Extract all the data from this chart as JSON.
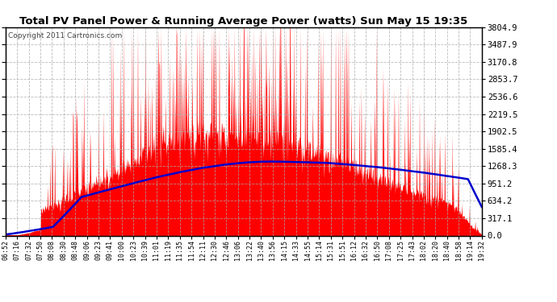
{
  "title": "Total PV Panel Power & Running Average Power (watts) Sun May 15 19:35",
  "copyright": "Copyright 2011 Cartronics.com",
  "ylabel_right": [
    "3804.9",
    "3487.9",
    "3170.8",
    "2853.7",
    "2536.6",
    "2219.5",
    "1902.5",
    "1585.4",
    "1268.3",
    "951.2",
    "634.2",
    "317.1",
    "0.0"
  ],
  "ymax": 3804.9,
  "ymin": 0.0,
  "bg_color": "#ffffff",
  "fill_color": "#ff0000",
  "avg_color": "#0000cc",
  "grid_color": "#aaaaaa",
  "xtick_labels": [
    "06:52",
    "07:16",
    "07:32",
    "07:50",
    "08:08",
    "08:30",
    "08:48",
    "09:06",
    "09:23",
    "09:41",
    "10:00",
    "10:23",
    "10:39",
    "11:01",
    "11:19",
    "11:35",
    "11:54",
    "12:11",
    "12:30",
    "12:46",
    "13:06",
    "13:22",
    "13:40",
    "13:56",
    "14:15",
    "14:33",
    "14:55",
    "15:14",
    "15:31",
    "15:51",
    "16:12",
    "16:32",
    "16:50",
    "17:08",
    "17:25",
    "17:43",
    "18:02",
    "18:20",
    "18:40",
    "18:58",
    "19:14",
    "19:32"
  ]
}
